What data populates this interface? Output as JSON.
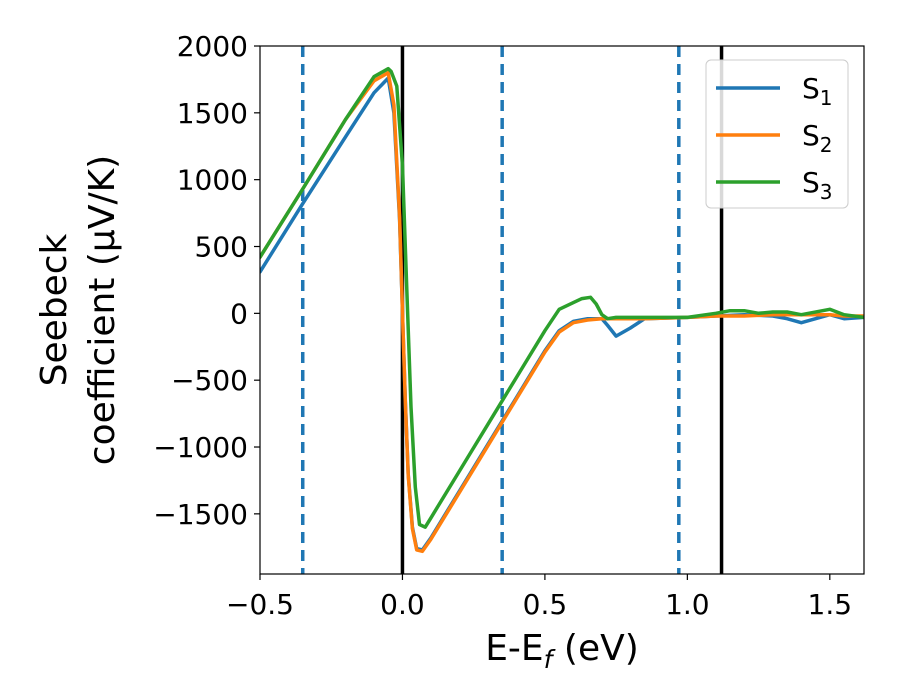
{
  "chart_data": {
    "type": "line",
    "xlabel": "E-E",
    "xlabel_sub": "f",
    "xlabel_unit": " (eV)",
    "ylabel_line1": "Seebeck",
    "ylabel_line2": "coefficient  (μV/K)",
    "xlim": [
      -0.5,
      1.62
    ],
    "ylim": [
      -1950,
      2000
    ],
    "xticks": [
      -0.5,
      0.0,
      0.5,
      1.0,
      1.5
    ],
    "xtick_labels": [
      "−0.5",
      "0.0",
      "0.5",
      "1.0",
      "1.5"
    ],
    "yticks": [
      -1500,
      -1000,
      -500,
      0,
      500,
      1000,
      1500,
      2000
    ],
    "ytick_labels": [
      "−1500",
      "−1000",
      "−500",
      "0",
      "500",
      "1000",
      "1500",
      "2000"
    ],
    "grid": false,
    "legend": "top-right",
    "vlines_dashed": [
      -0.35,
      0.35,
      0.97
    ],
    "vlines_solid": [
      0.0,
      1.12
    ],
    "dashed_color": "#1f77b4",
    "solid_color": "#000000",
    "series": [
      {
        "name": "S",
        "sub": "1",
        "color": "#1f77b4",
        "x": [
          -0.5,
          -0.35,
          -0.2,
          -0.1,
          -0.05,
          -0.03,
          -0.01,
          0.0,
          0.01,
          0.02,
          0.035,
          0.05,
          0.07,
          0.1,
          0.2,
          0.3,
          0.4,
          0.5,
          0.55,
          0.6,
          0.65,
          0.7,
          0.72,
          0.75,
          0.8,
          0.85,
          1.0,
          1.1,
          1.2,
          1.3,
          1.35,
          1.4,
          1.5,
          1.55,
          1.62
        ],
        "y": [
          310,
          820,
          1320,
          1650,
          1760,
          1500,
          700,
          0,
          -650,
          -1200,
          -1600,
          -1760,
          -1770,
          -1680,
          -1330,
          -980,
          -630,
          -280,
          -130,
          -60,
          -40,
          -40,
          -90,
          -170,
          -110,
          -40,
          -30,
          -20,
          -10,
          -20,
          -40,
          -70,
          -10,
          -40,
          -30
        ]
      },
      {
        "name": "S",
        "sub": "2",
        "color": "#ff7f0e",
        "x": [
          -0.5,
          -0.35,
          -0.2,
          -0.1,
          -0.05,
          -0.03,
          -0.01,
          0.0,
          0.01,
          0.02,
          0.035,
          0.05,
          0.07,
          0.1,
          0.2,
          0.3,
          0.4,
          0.5,
          0.55,
          0.6,
          0.65,
          0.7,
          0.75,
          0.8,
          0.85,
          1.0,
          1.1,
          1.2,
          1.3,
          1.4,
          1.5,
          1.55,
          1.62
        ],
        "y": [
          420,
          930,
          1450,
          1740,
          1800,
          1560,
          720,
          0,
          -660,
          -1210,
          -1610,
          -1770,
          -1780,
          -1690,
          -1340,
          -990,
          -640,
          -290,
          -140,
          -70,
          -50,
          -40,
          -40,
          -40,
          -40,
          -30,
          -20,
          -20,
          -10,
          -10,
          -10,
          -20,
          -20
        ]
      },
      {
        "name": "S",
        "sub": "3",
        "color": "#2ca02c",
        "x": [
          -0.5,
          -0.35,
          -0.2,
          -0.1,
          -0.05,
          -0.04,
          -0.02,
          0.0,
          0.015,
          0.03,
          0.045,
          0.06,
          0.08,
          0.1,
          0.2,
          0.3,
          0.4,
          0.5,
          0.55,
          0.6,
          0.63,
          0.66,
          0.68,
          0.7,
          0.72,
          0.75,
          0.8,
          0.85,
          1.0,
          1.1,
          1.15,
          1.2,
          1.25,
          1.3,
          1.35,
          1.4,
          1.5,
          1.55,
          1.62
        ],
        "y": [
          420,
          930,
          1450,
          1770,
          1830,
          1810,
          1700,
          1100,
          200,
          -700,
          -1300,
          -1580,
          -1600,
          -1530,
          -1180,
          -830,
          -480,
          -130,
          30,
          80,
          110,
          120,
          70,
          -10,
          -40,
          -30,
          -30,
          -30,
          -30,
          0,
          20,
          20,
          0,
          10,
          10,
          -10,
          30,
          -10,
          -30
        ]
      }
    ]
  }
}
